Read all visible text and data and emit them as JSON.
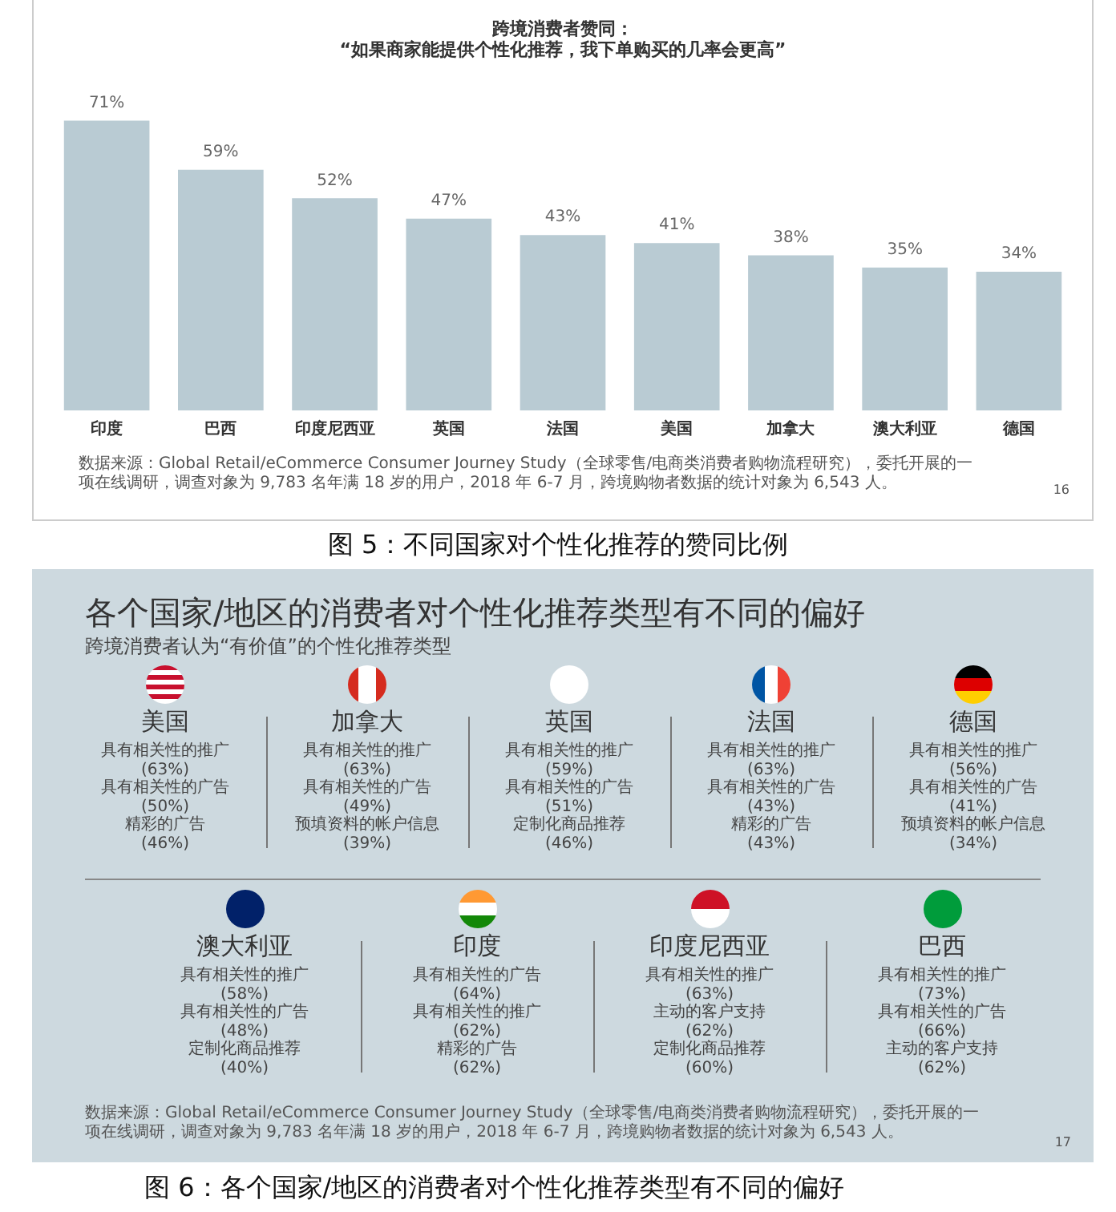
{
  "chart_data": [
    {
      "type": "bar",
      "title": "跨境消费者赞同：\n“如果商家能提供个性化推荐，我下单购买的几率会更高”",
      "categories": [
        "印度",
        "巴西",
        "印度尼西亚",
        "英国",
        "法国",
        "美国",
        "加拿大",
        "澳大利亚",
        "德国"
      ],
      "values": [
        71,
        59,
        52,
        47,
        43,
        41,
        38,
        35,
        34
      ],
      "value_labels": [
        "71%",
        "59%",
        "52%",
        "47%",
        "43%",
        "41%",
        "38%",
        "35%",
        "34%"
      ],
      "color": "#b9cbd3",
      "grid": false,
      "legend": false,
      "tick_labels": "x",
      "annotations": [
        "数据来源：Global Retail/eCommerce Consumer Journey Study（全球零售/电商类消费者购物流程研究），委托开展的一项在线调研，调查对象为 9,783 名年满 18 岁的用户，2018 年 6-7 月，跨境购物者数据的统计对象为 6,543 人。",
        "16",
        "图 5：不同国家对个性化推荐的赞同比例"
      ]
    },
    {
      "type": "other",
      "title": "各个国家/地区的消费者对个性化推荐类型有不同的偏好",
      "subtitle": "跨境消费者认为“有价值”的个性化推荐类型",
      "categories": [
        "美国",
        "加拿大",
        "英国",
        "法国",
        "德国",
        "澳大利亚",
        "印度",
        "印度尼西亚",
        "巴西"
      ],
      "annotations": [
        "具有相关性的推广\n(63%)\n具有相关性的广告\n(50%)\n精彩的广告\n(46%)",
        "具有相关性的推广\n(63%)\n具有相关性的广告\n(49%)\n预填资料的帐户信息\n(39%)",
        "具有相关性的推广\n(59%)\n具有相关性的广告\n(51%)\n定制化商品推荐\n(46%)",
        "具有相关性的推广\n(63%)\n具有相关性的广告\n(43%)\n精彩的广告\n(43%)",
        "具有相关性的推广\n(56%)\n具有相关性的广告\n(41%)\n预填资料的帐户信息\n(34%)",
        "具有相关性的推广\n(58%)\n具有相关性的广告\n(48%)\n定制化商品推荐\n(40%)",
        "具有相关性的广告\n(64%)\n具有相关性的推广\n(62%)\n精彩的广告\n(62%)",
        "具有相关性的推广\n(63%)\n主动的客户支持\n(62%)\n定制化商品推荐\n(60%)",
        "具有相关性的推广\n(73%)\n具有相关性的广告\n(66%)\n主动的客户支持\n(62%)",
        "数据来源：Global Retail/eCommerce Consumer Journey Study（全球零售/电商类消费者购物流程研究），委托开展的一项在线调研，调查对象为 9,783 名年满 18 岁的用户，2018 年 6-7 月，跨境购物者数据的统计对象为 6,543 人。",
        "17",
        "图 6：各个国家/地区的消费者对个性化推荐类型有不同的偏好"
      ]
    }
  ]
}
